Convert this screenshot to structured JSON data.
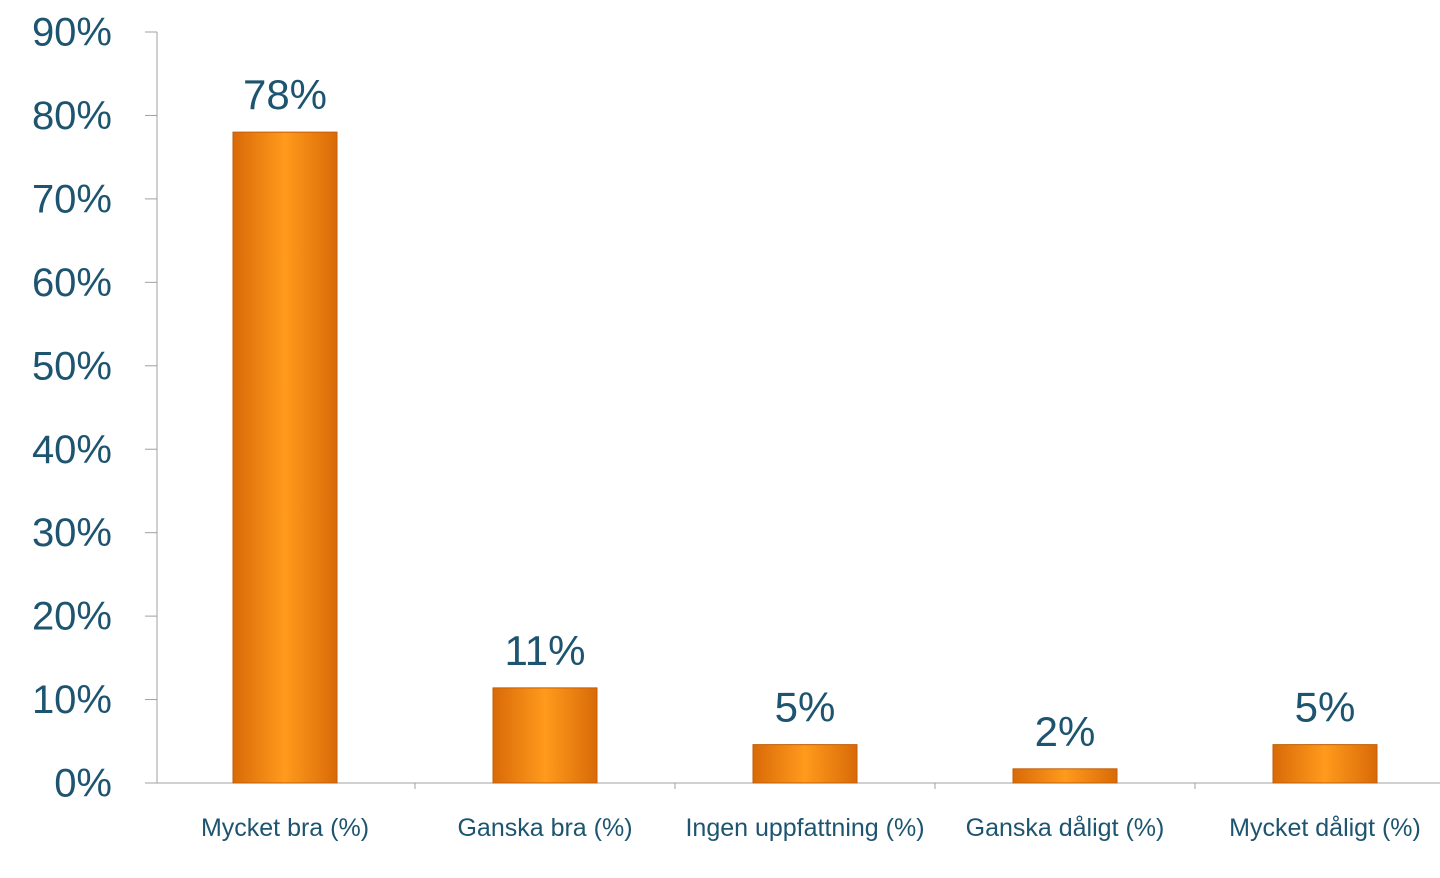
{
  "chart_data": {
    "type": "bar",
    "categories": [
      "Mycket bra (%)",
      "Ganska bra (%)",
      "Ingen uppfattning (%)",
      "Ganska dåligt (%)",
      "Mycket dåligt (%)"
    ],
    "values": [
      78,
      11.4,
      4.6,
      1.7,
      4.6
    ],
    "value_labels": [
      "78%",
      "11%",
      "5%",
      "2%",
      "5%"
    ],
    "color": "#f7900f",
    "ylim": [
      0,
      90
    ],
    "yticks": [
      {
        "value": 0,
        "label": "0%"
      },
      {
        "value": 10,
        "label": "10%"
      },
      {
        "value": 20,
        "label": "20%"
      },
      {
        "value": 30,
        "label": "30%"
      },
      {
        "value": 40,
        "label": "40%"
      },
      {
        "value": 50,
        "label": "50%"
      },
      {
        "value": 60,
        "label": "60%"
      },
      {
        "value": 70,
        "label": "70%"
      },
      {
        "value": 80,
        "label": "80%"
      },
      {
        "value": 90,
        "label": "90%"
      }
    ],
    "grid": false
  }
}
